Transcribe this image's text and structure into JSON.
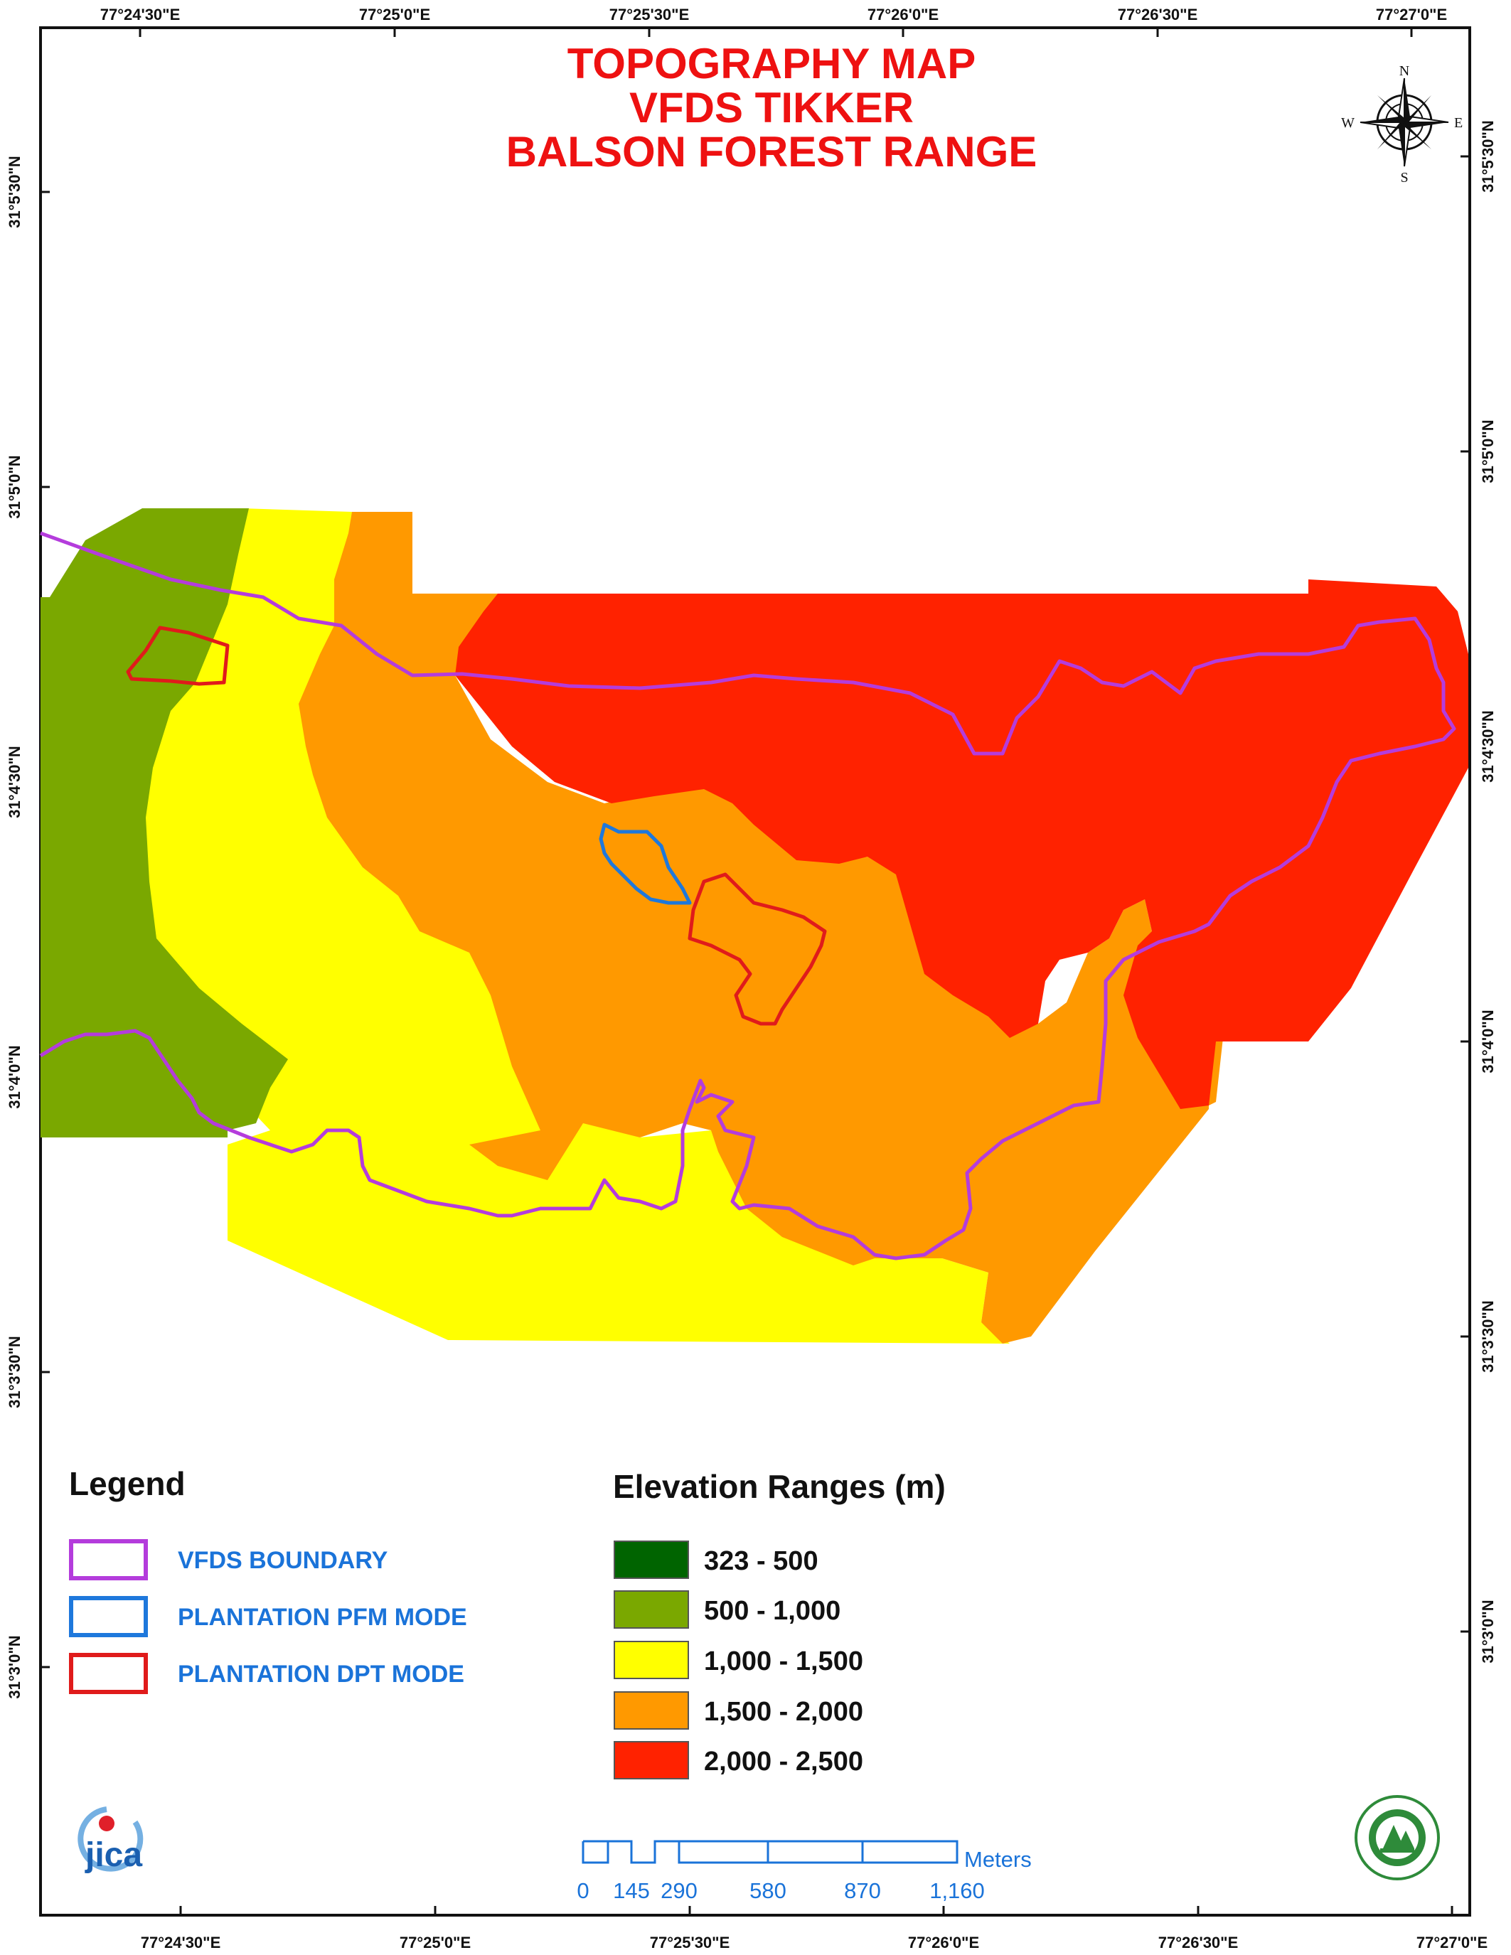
{
  "title": {
    "line1": "TOPOGRAPHY MAP",
    "line2": "VFDS TIKKER",
    "line3": "BALSON FOREST RANGE"
  },
  "coords": {
    "top": [
      "77°24'30\"E",
      "77°25'0\"E",
      "77°25'30\"E",
      "77°26'0\"E",
      "77°26'30\"E",
      "77°27'0\"E"
    ],
    "bottom": [
      "77°24'30\"E",
      "77°25'0\"E",
      "77°25'30\"E",
      "77°26'0\"E",
      "77°26'30\"E",
      "77°27'0\"E"
    ],
    "left": [
      "31°5'30\"N",
      "31°5'0\"N",
      "31°4'30\"N",
      "31°4'0\"N",
      "31°3'30\"N",
      "31°3'0\"N"
    ],
    "right": [
      "31°5'30\"N",
      "31°5'0\"N",
      "31°4'30\"N",
      "31°4'0\"N",
      "31°3'30\"N",
      "31°3'0\"N"
    ]
  },
  "compass": {
    "n": "N",
    "s": "S",
    "e": "E",
    "w": "W"
  },
  "legend": {
    "heading": "Legend",
    "items": [
      {
        "label": "VFDS BOUNDARY",
        "color": "#b43cdc"
      },
      {
        "label": "PLANTATION PFM MODE",
        "color": "#1e78dc"
      },
      {
        "label": "PLANTATION DPT MODE",
        "color": "#e01b1b"
      }
    ]
  },
  "elevation": {
    "heading": "Elevation Ranges (m)",
    "classes": [
      {
        "label": "323 - 500",
        "color": "#006400"
      },
      {
        "label": "500 - 1,000",
        "color": "#7aa800"
      },
      {
        "label": "1,000 - 1,500",
        "color": "#ffff00"
      },
      {
        "label": "1,500 - 2,000",
        "color": "#ff9900"
      },
      {
        "label": "2,000 - 2,500",
        "color": "#ff2200"
      }
    ]
  },
  "scale": {
    "unit": "Meters",
    "ticks": [
      "0",
      "145",
      "290",
      "580",
      "870",
      "1,160"
    ]
  },
  "logos": {
    "jica": "jica"
  }
}
